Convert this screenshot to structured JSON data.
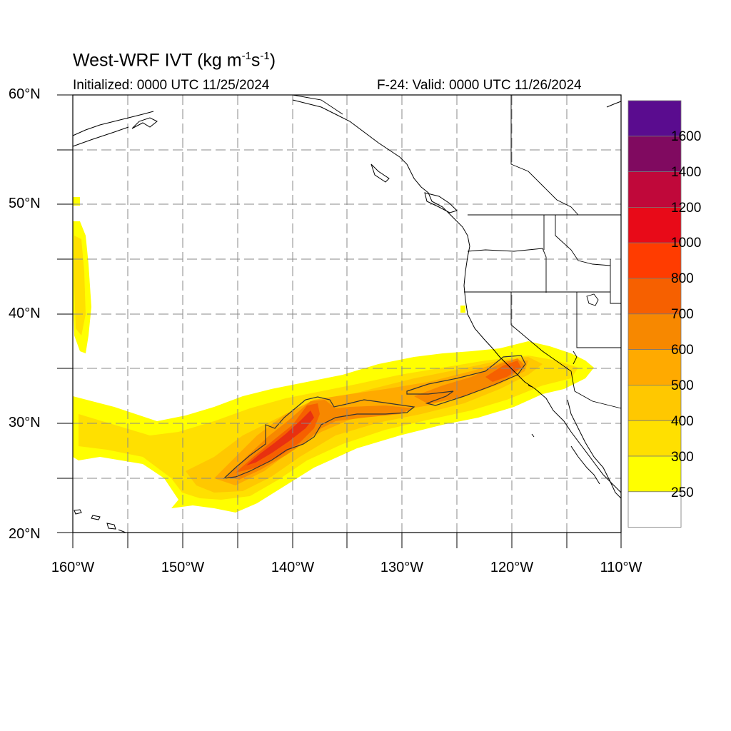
{
  "header": {
    "title_main": "West-WRF IVT (kg m",
    "title_exp1": "-1",
    "title_mid": "s",
    "title_exp2": "-1",
    "title_end": ")",
    "initialized": "Initialized: 0000 UTC 11/25/2024",
    "valid": "F-24: Valid: 0000 UTC 11/26/2024"
  },
  "axes": {
    "lat_labels": [
      "60°N",
      "50°N",
      "40°N",
      "30°N",
      "20°N"
    ],
    "lon_labels": [
      "160°W",
      "150°W",
      "140°W",
      "130°W",
      "120°W",
      "110°W"
    ],
    "lat_range": [
      20,
      60
    ],
    "lon_range": [
      -160,
      -110
    ]
  },
  "colorbar": {
    "labels": [
      "1600",
      "1400",
      "1200",
      "1000",
      "800",
      "700",
      "600",
      "500",
      "400",
      "300",
      "250"
    ],
    "colors": [
      "#5a0c8f",
      "#800a60",
      "#c0083a",
      "#e80a18",
      "#ff3c00",
      "#f66000",
      "#f78800",
      "#ffaa00",
      "#ffc800",
      "#ffe000",
      "#ffff00",
      "#ffffff"
    ]
  },
  "field_colors": {
    "low": "#ffff00",
    "mid1": "#ffe000",
    "mid2": "#ffc800",
    "mid3": "#ffaa00",
    "high1": "#f78800",
    "high2": "#f66000",
    "core": "#e83010"
  }
}
